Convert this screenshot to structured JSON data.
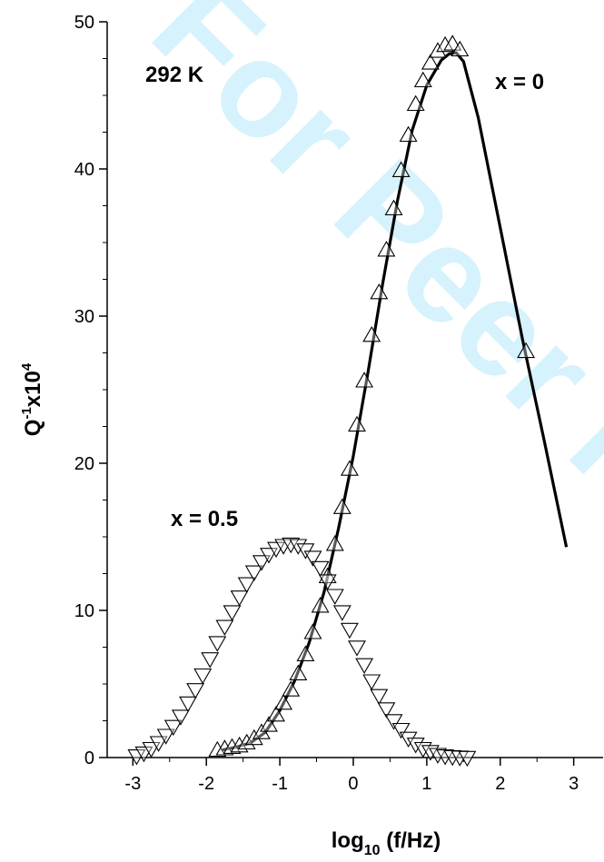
{
  "chart_data": {
    "type": "scatter",
    "title": "",
    "xlabel": "log10 (f/Hz)",
    "xlabel_parts": [
      "log",
      "10",
      " (f/Hz)"
    ],
    "ylabel": "Q-1x104",
    "ylabel_parts": [
      "Q",
      "-1",
      "x10",
      "4"
    ],
    "xlim": [
      -3.35,
      3.4
    ],
    "ylim": [
      0,
      50
    ],
    "xticks": [
      "-3",
      "-2",
      "-1",
      "0",
      "1",
      "2",
      "3"
    ],
    "yticks": [
      "0",
      "10",
      "20",
      "30",
      "40",
      "50"
    ],
    "grid": false,
    "annotations": [
      "292 K",
      "x = 0",
      "x = 0.5"
    ],
    "watermark": "For Peer Review",
    "series": [
      {
        "name": "x = 0",
        "marker": "triangle-up",
        "x": [
          -1.85,
          -1.75,
          -1.65,
          -1.55,
          -1.45,
          -1.35,
          -1.25,
          -1.15,
          -1.05,
          -0.95,
          -0.85,
          -0.75,
          -0.65,
          -0.55,
          -0.45,
          -0.35,
          -0.25,
          -0.15,
          -0.05,
          0.05,
          0.15,
          0.25,
          0.35,
          0.45,
          0.55,
          0.65,
          0.75,
          0.85,
          0.95,
          1.05,
          1.15,
          1.25,
          1.35,
          1.45,
          2.35
        ],
        "y": [
          0.5,
          0.6,
          0.7,
          0.8,
          1.0,
          1.3,
          1.7,
          2.2,
          2.9,
          3.7,
          4.6,
          5.7,
          7.0,
          8.5,
          10.3,
          12.3,
          14.5,
          17.0,
          19.6,
          22.6,
          25.6,
          28.7,
          31.6,
          34.5,
          37.3,
          39.9,
          42.3,
          44.4,
          46.0,
          47.2,
          48.0,
          48.4,
          48.5,
          48.1,
          27.6
        ]
      },
      {
        "name": "x = 0.5",
        "marker": "triangle-down",
        "x": [
          -2.95,
          -2.85,
          -2.75,
          -2.65,
          -2.55,
          -2.45,
          -2.35,
          -2.25,
          -2.15,
          -2.05,
          -1.95,
          -1.85,
          -1.75,
          -1.65,
          -1.55,
          -1.45,
          -1.35,
          -1.25,
          -1.15,
          -1.05,
          -0.95,
          -0.85,
          -0.75,
          -0.65,
          -0.55,
          -0.45,
          -0.35,
          -0.25,
          -0.15,
          -0.05,
          0.05,
          0.15,
          0.25,
          0.35,
          0.45,
          0.55,
          0.65,
          0.75,
          0.85,
          0.95,
          1.05,
          1.15,
          1.25,
          1.35,
          1.45,
          1.55
        ],
        "y": [
          0.1,
          0.3,
          0.6,
          1.0,
          1.5,
          2.1,
          2.8,
          3.7,
          4.6,
          5.6,
          6.7,
          7.8,
          8.9,
          9.9,
          10.9,
          11.8,
          12.6,
          13.3,
          13.8,
          14.2,
          14.4,
          14.5,
          14.4,
          14.1,
          13.6,
          12.9,
          12.0,
          11.0,
          9.9,
          8.7,
          7.5,
          6.3,
          5.2,
          4.2,
          3.3,
          2.5,
          1.9,
          1.3,
          0.9,
          0.6,
          0.4,
          0.2,
          0.1,
          0.05,
          0.02,
          0.0
        ]
      }
    ],
    "fit_curve": {
      "series": "x = 0",
      "x": [
        -1.8,
        -1.6,
        -1.4,
        -1.2,
        -1.0,
        -0.8,
        -0.6,
        -0.4,
        -0.2,
        0.0,
        0.2,
        0.4,
        0.6,
        0.8,
        1.0,
        1.2,
        1.3,
        1.4,
        1.5,
        1.7,
        2.0,
        2.3,
        2.6,
        2.9
      ],
      "y": [
        0.5,
        0.7,
        1.0,
        1.7,
        3.2,
        5.2,
        7.8,
        11.2,
        15.6,
        20.5,
        26.2,
        32.2,
        37.8,
        42.6,
        45.7,
        47.4,
        47.8,
        47.9,
        47.3,
        43.5,
        36.0,
        28.5,
        21.5,
        14.3
      ]
    }
  }
}
